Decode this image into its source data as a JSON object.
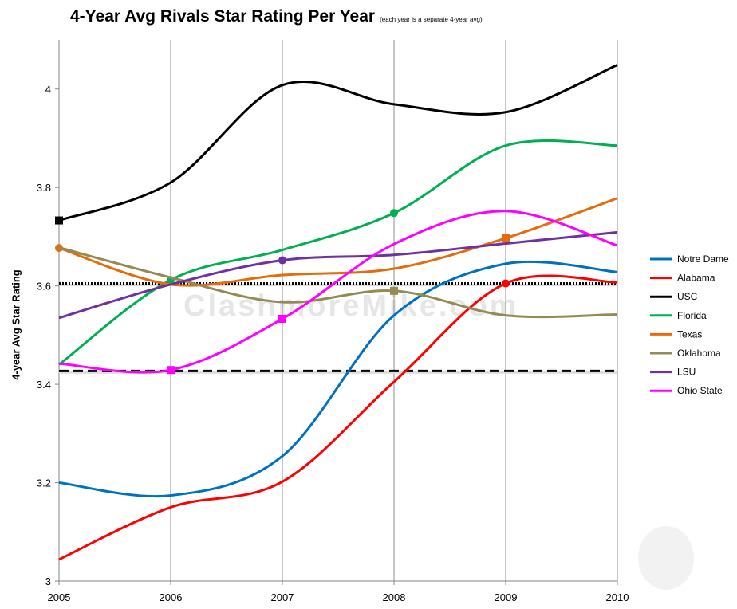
{
  "chart_data": {
    "type": "line",
    "title": "4-Year Avg Rivals Star Rating Per Year",
    "subtitle": "(each year is a separate 4-year avg)",
    "xlabel": "",
    "ylabel": "4-year Avg Star Rating",
    "x": [
      2005,
      2006,
      2007,
      2008,
      2009,
      2010
    ],
    "x_tick_labels": [
      "2005",
      "2006",
      "2007",
      "2008",
      "2009",
      "2010"
    ],
    "y_ticks": [
      3,
      3.2,
      3.4,
      3.6,
      3.8,
      4
    ],
    "y_tick_labels": [
      "3",
      "3.2",
      "3.4",
      "3.6",
      "3.8",
      "4"
    ],
    "ylim": [
      3,
      4.1
    ],
    "grid": "vertical",
    "legend_position": "right",
    "watermark": "ClashmoreMike.com",
    "series": [
      {
        "name": "Notre Dame",
        "color": "#0070c0",
        "values": [
          3.2,
          3.174,
          3.254,
          3.54,
          3.645,
          3.628
        ],
        "markers": []
      },
      {
        "name": "Alabama",
        "color": "#ff0000",
        "values": [
          3.044,
          3.15,
          3.202,
          3.405,
          3.605,
          3.607
        ],
        "markers": [
          {
            "x": 2009,
            "shape": "circle"
          }
        ]
      },
      {
        "name": "USC",
        "color": "#000000",
        "values": [
          3.733,
          3.81,
          4.008,
          3.969,
          3.953,
          4.049
        ],
        "markers": [
          {
            "x": 2005,
            "shape": "square"
          }
        ]
      },
      {
        "name": "Florida",
        "color": "#00b050",
        "values": [
          3.44,
          3.612,
          3.673,
          3.748,
          3.885,
          3.885
        ],
        "markers": [
          {
            "x": 2006,
            "shape": "circle"
          },
          {
            "x": 2008,
            "shape": "circle"
          }
        ]
      },
      {
        "name": "Texas",
        "color": "#e46c0a",
        "values": [
          3.677,
          3.603,
          3.622,
          3.635,
          3.697,
          3.778
        ],
        "markers": [
          {
            "x": 2005,
            "shape": "circle"
          },
          {
            "x": 2009,
            "shape": "square"
          }
        ]
      },
      {
        "name": "Oklahoma",
        "color": "#948a54",
        "values": [
          3.678,
          3.617,
          3.567,
          3.59,
          3.54,
          3.542
        ],
        "markers": [
          {
            "x": 2008,
            "shape": "square"
          }
        ]
      },
      {
        "name": "LSU",
        "color": "#7030a0",
        "values": [
          3.535,
          3.603,
          3.652,
          3.663,
          3.686,
          3.709
        ],
        "markers": [
          {
            "x": 2007,
            "shape": "circle"
          }
        ]
      },
      {
        "name": "Ohio State",
        "color": "#ff00ff",
        "values": [
          3.442,
          3.429,
          3.533,
          3.685,
          3.752,
          3.682
        ],
        "markers": [
          {
            "x": 2006,
            "shape": "square"
          },
          {
            "x": 2007,
            "shape": "square"
          }
        ]
      }
    ],
    "reference_lines": [
      {
        "value": 3.605,
        "style": "dotted",
        "color": "#000000"
      },
      {
        "value": 3.427,
        "style": "dashed",
        "color": "#000000"
      }
    ]
  }
}
